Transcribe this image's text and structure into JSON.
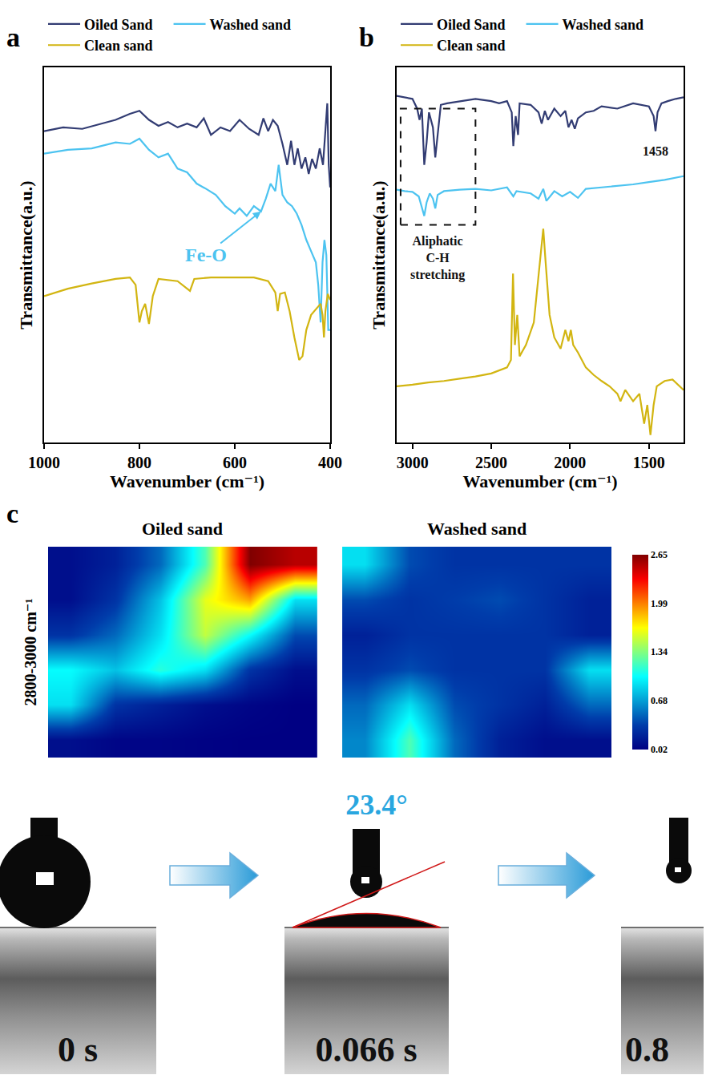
{
  "chart_data": [
    {
      "type": "line",
      "panel_label": "a",
      "x_label": "Wavenumber (cm⁻¹)",
      "y_label": "Transmittance(a.u.)",
      "xlim": [
        1000,
        400
      ],
      "xticks": [
        1000,
        800,
        600,
        400
      ],
      "ylim": [
        0,
        100
      ],
      "tick_labels": "x",
      "grid": false,
      "legend": "top",
      "series": [
        {
          "name": "Oiled Sand",
          "color": "#323c73",
          "x": [
            1000,
            960,
            920,
            880,
            850,
            820,
            800,
            780,
            760,
            740,
            720,
            700,
            680,
            665,
            650,
            630,
            610,
            590,
            570,
            550,
            540,
            530,
            520,
            510,
            500,
            490,
            482,
            475,
            468,
            460,
            452,
            445,
            438,
            430,
            422,
            415,
            410,
            406,
            403,
            400
          ],
          "values": [
            83,
            84,
            83.6,
            85,
            86,
            87.6,
            88.4,
            86,
            84.4,
            85.4,
            84,
            85,
            84,
            86.4,
            82,
            84,
            83,
            86,
            83.6,
            82,
            86.4,
            83,
            86,
            84.4,
            79.6,
            74,
            80.4,
            74,
            78.4,
            73,
            76,
            71.6,
            75.6,
            73,
            78.4,
            74,
            84,
            90.4,
            74,
            68
          ]
        },
        {
          "name": "Washed sand",
          "color": "#4cc3f0",
          "x": [
            1000,
            950,
            900,
            850,
            820,
            800,
            780,
            760,
            740,
            720,
            700,
            680,
            660,
            640,
            620,
            600,
            590,
            575,
            560,
            545,
            535,
            525,
            515,
            508,
            500,
            490,
            480,
            470,
            460,
            450,
            440,
            430,
            425,
            420,
            416,
            412,
            408,
            404,
            400
          ],
          "values": [
            77,
            78,
            78.4,
            80,
            79.6,
            81,
            78,
            76,
            77,
            73,
            72,
            69,
            67.6,
            66,
            63,
            61,
            62.4,
            60.4,
            63,
            61.6,
            65,
            69,
            67,
            74,
            66,
            64,
            63,
            61,
            58,
            54,
            51,
            48,
            42,
            32,
            48,
            54,
            50,
            30,
            30
          ]
        },
        {
          "name": "Clean sand",
          "color": "#d2b511",
          "x": [
            1000,
            950,
            900,
            850,
            820,
            808,
            800,
            795,
            788,
            780,
            772,
            760,
            720,
            700,
            694,
            685,
            650,
            600,
            560,
            530,
            515,
            510,
            505,
            495,
            485,
            475,
            465,
            458,
            450,
            440,
            430,
            420,
            416,
            413,
            410,
            405,
            400
          ],
          "values": [
            39,
            41,
            42.4,
            43.6,
            44,
            42,
            32,
            35,
            37,
            31.6,
            39,
            43.6,
            43,
            41,
            40.4,
            43.6,
            44,
            44,
            44,
            43,
            40,
            35,
            39.6,
            40,
            35,
            28,
            22,
            23,
            30,
            34,
            35.6,
            37,
            34,
            28,
            35,
            39.6,
            38
          ]
        }
      ],
      "annotations": [
        {
          "text": "Fe-O",
          "x": 545,
          "y": 61.6,
          "ax": 661,
          "ay": 50,
          "color": "#4cc3f0"
        }
      ]
    },
    {
      "type": "line",
      "panel_label": "b",
      "x_label": "Wavenumber (cm⁻¹)",
      "y_label": "Transmittance(a.u.)",
      "xlim": [
        3100,
        1280
      ],
      "xticks": [
        3000,
        2500,
        2000,
        1500
      ],
      "ylim": [
        0,
        100
      ],
      "tick_labels": "x",
      "grid": false,
      "legend": "top",
      "series": [
        {
          "name": "Oiled Sand",
          "color": "#323c73",
          "x": [
            3100,
            3050,
            3000,
            2970,
            2955,
            2940,
            2925,
            2910,
            2895,
            2870,
            2855,
            2840,
            2820,
            2780,
            2700,
            2600,
            2500,
            2450,
            2400,
            2370,
            2360,
            2345,
            2330,
            2320,
            2250,
            2200,
            2180,
            2160,
            2140,
            2100,
            2060,
            2030,
            2010,
            1990,
            1970,
            1950,
            1900,
            1850,
            1800,
            1700,
            1600,
            1550,
            1500,
            1470,
            1458,
            1445,
            1420,
            1380,
            1330,
            1280
          ],
          "values": [
            92.4,
            92,
            91.6,
            89,
            86,
            89,
            74,
            80,
            88,
            84,
            76,
            82,
            90,
            90.4,
            91,
            91.6,
            91,
            90.4,
            91,
            88,
            79,
            87,
            82,
            90.4,
            90,
            88,
            85,
            88.4,
            86,
            89,
            87,
            88.4,
            84,
            86,
            83.6,
            86.4,
            88,
            88.4,
            89.6,
            89,
            90.4,
            90,
            89.6,
            87,
            83,
            88,
            90.4,
            91,
            91.6,
            92
          ]
        },
        {
          "name": "Washed sand",
          "color": "#4cc3f0",
          "x": [
            3100,
            3050,
            3000,
            2960,
            2925,
            2910,
            2890,
            2870,
            2855,
            2840,
            2800,
            2700,
            2600,
            2500,
            2400,
            2360,
            2340,
            2250,
            2200,
            2170,
            2150,
            2100,
            2050,
            2000,
            1950,
            1900,
            1800,
            1700,
            1600,
            1500,
            1400,
            1280
          ],
          "values": [
            67.4,
            67,
            66.8,
            65.6,
            60.4,
            64,
            66.4,
            65,
            62.4,
            66,
            67,
            67.4,
            67.6,
            67.2,
            68,
            65.6,
            67,
            66.4,
            65,
            67.6,
            64.4,
            67,
            65.6,
            66.8,
            65.2,
            67.6,
            68,
            68.4,
            68.8,
            69.4,
            70,
            71
          ]
        },
        {
          "name": "Clean sand",
          "color": "#d2b511",
          "x": [
            3100,
            3000,
            2900,
            2800,
            2700,
            2600,
            2500,
            2400,
            2375,
            2362,
            2350,
            2335,
            2320,
            2280,
            2230,
            2190,
            2170,
            2155,
            2130,
            2100,
            2060,
            2030,
            2010,
            1995,
            1980,
            1950,
            1900,
            1850,
            1800,
            1750,
            1700,
            1680,
            1650,
            1600,
            1560,
            1530,
            1510,
            1490,
            1470,
            1450,
            1400,
            1350,
            1280
          ],
          "values": [
            15,
            15.4,
            16,
            16.4,
            17,
            17.6,
            18.4,
            20,
            22,
            45,
            26,
            34,
            23,
            26,
            32,
            48,
            57,
            48,
            34,
            28,
            25,
            30,
            27,
            30,
            26,
            24,
            20,
            18,
            16.4,
            15,
            13,
            11,
            14,
            11,
            13,
            5,
            10,
            2,
            10,
            15,
            16.4,
            16.8,
            14
          ]
        }
      ],
      "box": {
        "x": [
          3075,
          2600
        ],
        "y": [
          58,
          89
        ]
      },
      "annotations": [
        {
          "text": "1458",
          "x": 1458,
          "y": 80
        },
        {
          "text": "Aliphatic C-H stretching",
          "x": 2840,
          "y": 56
        }
      ]
    },
    {
      "type": "heatmap",
      "panel_label": "c",
      "y_label": "2800-3000 cm⁻¹",
      "tick_labels": false,
      "panels": [
        {
          "title": "Oiled sand",
          "z": [
            [
              0.1,
              0.2,
              0.5,
              1.2,
              2.65,
              2.5
            ],
            [
              0.1,
              0.3,
              0.8,
              1.6,
              1.9,
              0.9
            ],
            [
              0.3,
              0.5,
              0.9,
              1.5,
              1.0,
              0.4
            ],
            [
              1.0,
              0.8,
              1.1,
              0.9,
              0.3,
              0.1
            ],
            [
              0.9,
              0.3,
              0.2,
              0.1,
              0.05,
              0.02
            ],
            [
              0.1,
              0.05,
              0.05,
              0.03,
              0.02,
              0.02
            ]
          ]
        },
        {
          "title": "Washed sand",
          "z": [
            [
              0.9,
              0.4,
              0.3,
              0.3,
              0.3,
              0.3
            ],
            [
              0.4,
              0.3,
              0.35,
              0.4,
              0.3,
              0.2
            ],
            [
              0.2,
              0.3,
              0.3,
              0.3,
              0.3,
              0.2
            ],
            [
              0.3,
              0.4,
              0.3,
              0.3,
              0.3,
              0.9
            ],
            [
              0.5,
              0.9,
              0.4,
              0.3,
              0.2,
              0.5
            ],
            [
              0.6,
              1.2,
              0.5,
              0.2,
              0.1,
              0.1
            ]
          ]
        }
      ],
      "colorbar": {
        "range": [
          0.02,
          2.65
        ],
        "ticks": [
          0.02,
          0.68,
          1.34,
          1.99,
          2.65
        ]
      }
    }
  ],
  "contact_angle": {
    "frames": [
      "0 s",
      "0.066 s",
      "0.8"
    ],
    "angle": "23.4°"
  }
}
